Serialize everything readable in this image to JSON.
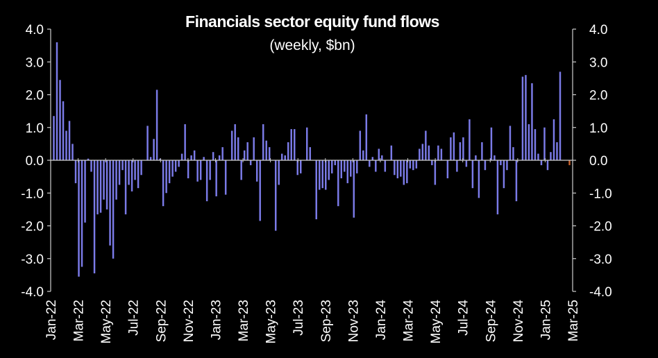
{
  "chart_data": {
    "type": "bar",
    "title": "Financials sector equity fund flows",
    "subtitle": "(weekly, $bn)",
    "ylim": [
      -4,
      4
    ],
    "yticks": [
      "4.0",
      "3.0",
      "2.0",
      "1.0",
      "0.0",
      "-1.0",
      "-2.0",
      "-3.0",
      "-4.0"
    ],
    "xticks": [
      "Jan-22",
      "Mar-22",
      "May-22",
      "Jul-22",
      "Sep-22",
      "Nov-22",
      "Jan-23",
      "Mar-23",
      "May-23",
      "Jul-23",
      "Sep-23",
      "Nov-23",
      "Jan-24",
      "Mar-24",
      "May-24",
      "Jul-24",
      "Sep-24",
      "Nov-24",
      "Jan-25",
      "Mar-25"
    ],
    "bar_color": "#7B7BE8",
    "highlight_color": "#C8602A",
    "highlight_index": 165,
    "values": [
      1.35,
      3.6,
      2.45,
      1.8,
      0.9,
      1.2,
      0.5,
      -0.7,
      -3.55,
      -3.25,
      -1.9,
      0.05,
      -0.35,
      -3.45,
      -1.65,
      -1.6,
      -1.2,
      -1.5,
      -2.6,
      -3.0,
      -1.2,
      -0.75,
      -0.3,
      -1.65,
      -0.75,
      -0.95,
      -0.6,
      -0.85,
      -0.45,
      0.0,
      1.05,
      0.1,
      0.65,
      2.15,
      0.05,
      -1.4,
      -1.0,
      -0.7,
      -0.5,
      -0.35,
      -0.2,
      0.2,
      1.1,
      -0.55,
      0.15,
      0.3,
      -0.65,
      -0.6,
      0.1,
      -1.25,
      -0.6,
      0.25,
      -1.1,
      0.15,
      0.4,
      -1.05,
      0.0,
      0.9,
      1.1,
      0.7,
      -0.6,
      0.3,
      0.55,
      -0.15,
      0.7,
      -0.65,
      -1.85,
      1.1,
      0.6,
      0.4,
      0.0,
      -2.15,
      -0.75,
      0.2,
      0.15,
      0.55,
      0.95,
      0.95,
      -0.45,
      -0.4,
      0.0,
      1.0,
      0.4,
      0.0,
      -1.8,
      -0.9,
      -0.85,
      -0.9,
      -0.6,
      -0.4,
      -0.15,
      -1.4,
      -0.55,
      -0.35,
      -0.7,
      -0.5,
      -1.75,
      -0.4,
      0.9,
      0.3,
      1.4,
      -0.2,
      0.1,
      -0.35,
      0.35,
      0.15,
      -0.35,
      0.0,
      0.45,
      -0.45,
      -0.55,
      -0.5,
      -0.75,
      -0.7,
      -0.25,
      -0.3,
      -0.25,
      0.35,
      0.5,
      0.9,
      0.45,
      -0.15,
      -0.75,
      0.45,
      0.35,
      0.0,
      -0.55,
      0.7,
      0.85,
      -0.35,
      0.55,
      0.7,
      -0.2,
      1.25,
      -0.85,
      0.15,
      -1.15,
      0.55,
      -0.3,
      0.0,
      1.0,
      0.15,
      -1.65,
      -0.15,
      -0.85,
      -0.3,
      1.05,
      0.4,
      -1.25,
      0.0,
      2.55,
      2.6,
      1.1,
      2.35,
      0.95,
      0.2,
      -0.15,
      1.0,
      -0.3,
      0.25,
      1.25,
      0.55,
      2.7,
      0.0,
      0.0,
      -0.15
    ]
  }
}
